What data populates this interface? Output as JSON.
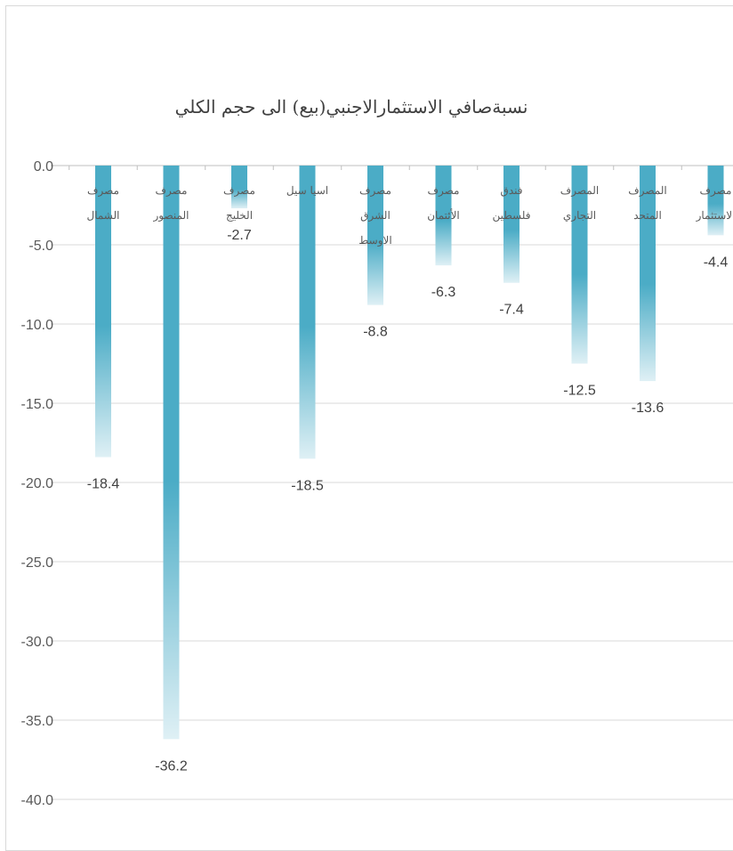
{
  "chart_data": {
    "type": "bar",
    "title": "نسبةصافي الاستثمارالاجنبي(بيع) الى حجم الكلي",
    "xlabel": "",
    "ylabel": "",
    "ylim": [
      -40,
      0
    ],
    "yticks": [
      "0.0",
      "-5.0",
      "-10.0",
      "-15.0",
      "-20.0",
      "-25.0",
      "-30.0",
      "-35.0",
      "-40.0"
    ],
    "categories": [
      [
        "مصرف",
        "الشمال"
      ],
      [
        "مصرف",
        "المنصور"
      ],
      [
        "مصرف",
        "الخليج"
      ],
      [
        "اسيا سيل"
      ],
      [
        "مصرف",
        "الشرق",
        "الاوسط"
      ],
      [
        "مصرف",
        "الأئتمان"
      ],
      [
        "فندق",
        "فلسطين"
      ],
      [
        "المصرف",
        "التجاري"
      ],
      [
        "المصرف",
        "المتحد"
      ],
      [
        "مصرف",
        "الاستثمار"
      ]
    ],
    "values": [
      -18.4,
      -36.2,
      -2.7,
      -18.5,
      -8.8,
      -6.3,
      -7.4,
      -12.5,
      -13.6,
      -4.4
    ],
    "data_labels": [
      "-18.4",
      "-36.2",
      "-2.7",
      "-18.5",
      "-8.8",
      "-6.3",
      "-7.4",
      "-12.5",
      "-13.6",
      "-4.4"
    ],
    "grid": true,
    "legend": "none",
    "colors": {
      "bar_top": "#4bacc6",
      "bar_bottom": "#dff0f5",
      "grid": "#d9d9d9",
      "axis": "#bfbfbf"
    }
  }
}
